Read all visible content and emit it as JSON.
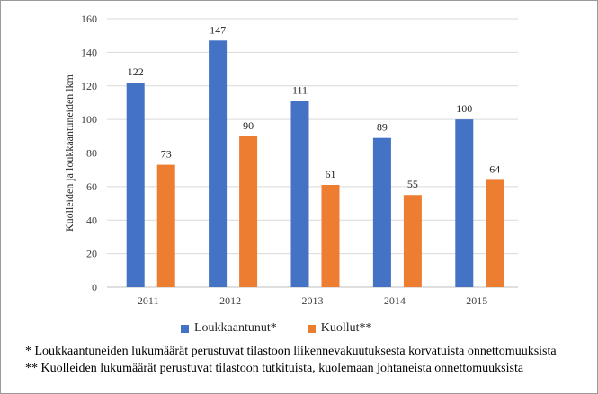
{
  "chart_data": {
    "type": "bar",
    "categories": [
      "2011",
      "2012",
      "2013",
      "2014",
      "2015"
    ],
    "series": [
      {
        "name": "Loukkaantunut*",
        "values": [
          122,
          147,
          111,
          89,
          100
        ],
        "color": "#4472C4"
      },
      {
        "name": "Kuollut**",
        "values": [
          73,
          90,
          61,
          55,
          64
        ],
        "color": "#ED7D31"
      }
    ],
    "title": "",
    "xlabel": "",
    "ylabel": "Kuolleiden ja loukkaantuneiden lkm",
    "ylim": [
      0,
      160
    ],
    "yticks": [
      0,
      20,
      40,
      60,
      80,
      100,
      120,
      140,
      160
    ],
    "grid": true,
    "legend_position": "bottom",
    "data_labels": true
  },
  "footnotes": [
    "* Loukkaantuneiden lukumäärät perustuvat tilastoon liikennevakuutuksesta korvatuista onnettomuuksista",
    "** Kuolleiden lukumäärät perustuvat tilastoon tutkituista, kuolemaan johtaneista onnettomuuksista"
  ]
}
